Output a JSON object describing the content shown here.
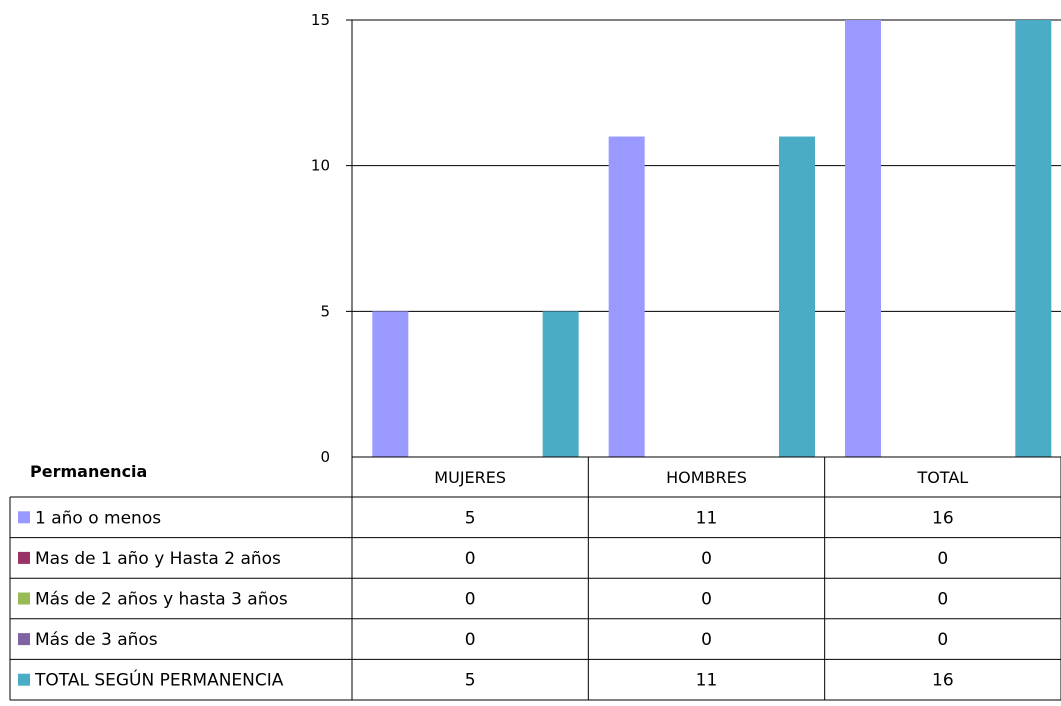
{
  "chart_data": {
    "type": "bar",
    "title": "",
    "table_header": "Permanencia",
    "categories": [
      "MUJERES",
      "HOMBRES",
      "TOTAL"
    ],
    "ylim": [
      0,
      15
    ],
    "yticks": [
      0,
      5,
      10,
      15
    ],
    "grid": true,
    "series": [
      {
        "name": "1 año o menos",
        "color": "#9999FF",
        "values": [
          5,
          11,
          16
        ]
      },
      {
        "name": "Mas de 1 año y Hasta 2 años",
        "color": "#993366",
        "values": [
          0,
          0,
          0
        ]
      },
      {
        "name": "Más de 2 años y hasta 3 años",
        "color": "#99BB55",
        "values": [
          0,
          0,
          0
        ]
      },
      {
        "name": "Más de 3 años",
        "color": "#8064A2",
        "values": [
          0,
          0,
          0
        ]
      },
      {
        "name": "TOTAL  SEGÚN PERMANENCIA",
        "color": "#4BACC6",
        "values": [
          5,
          11,
          16
        ]
      }
    ]
  }
}
